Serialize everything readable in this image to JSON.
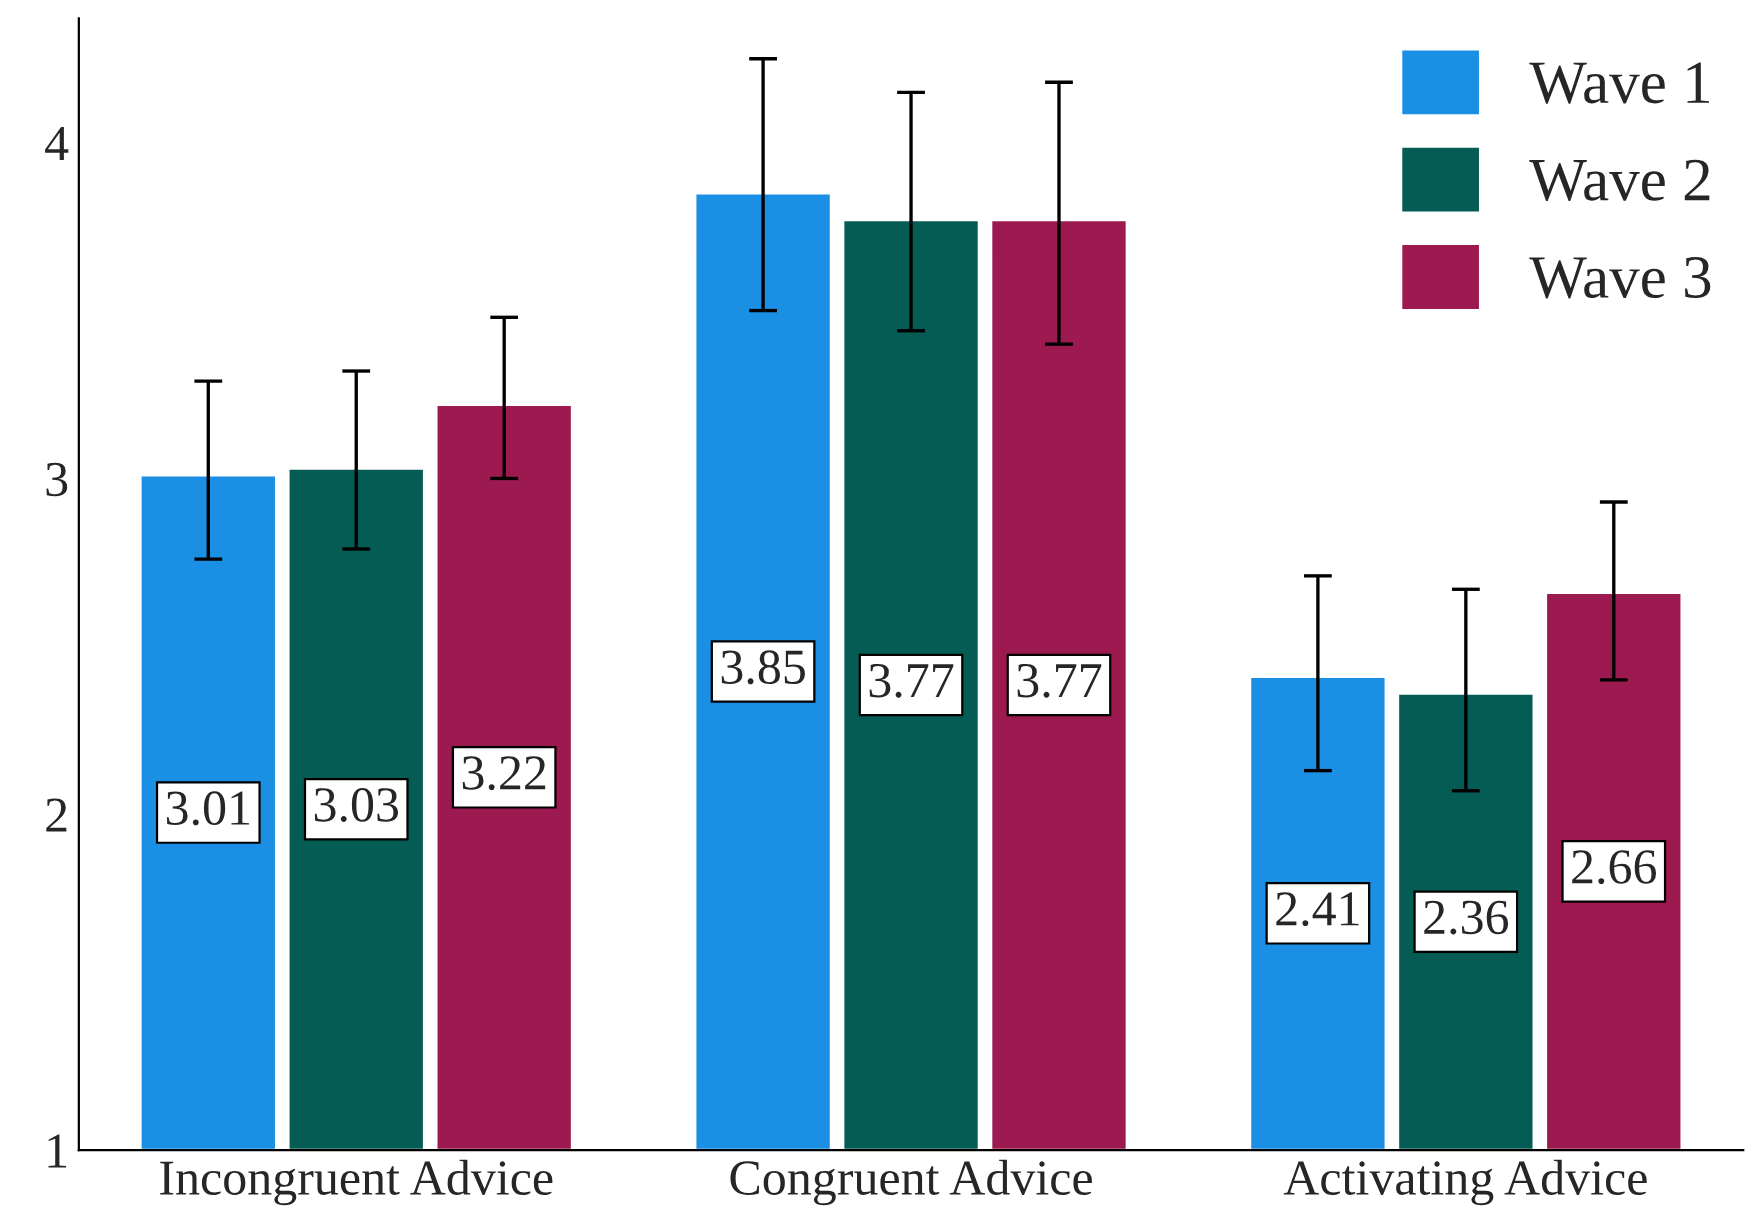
{
  "chart_data": {
    "type": "bar",
    "categories": [
      "Incongruent Advice",
      "Congruent Advice",
      "Activating Advice"
    ],
    "series": [
      {
        "name": "Wave 1",
        "color": "#1a8fe3",
        "values": [
          3.01,
          3.85,
          2.41
        ],
        "errors": [
          [
            2.76,
            3.29
          ],
          [
            3.5,
            4.25
          ],
          [
            2.13,
            2.71
          ]
        ]
      },
      {
        "name": "Wave 2",
        "color": "#055c55",
        "values": [
          3.03,
          3.77,
          2.36
        ],
        "errors": [
          [
            2.79,
            3.32
          ],
          [
            3.44,
            4.15
          ],
          [
            2.07,
            2.67
          ]
        ]
      },
      {
        "name": "Wave 3",
        "color": "#9c1a4f",
        "values": [
          3.22,
          3.77,
          2.66
        ],
        "errors": [
          [
            3.0,
            3.48
          ],
          [
            3.4,
            4.18
          ],
          [
            2.4,
            2.93
          ]
        ]
      }
    ],
    "ylim": [
      1,
      4.37
    ],
    "yticks": [
      1,
      2,
      3,
      4
    ],
    "grid": false,
    "legend": "top right",
    "data_labels": true
  }
}
